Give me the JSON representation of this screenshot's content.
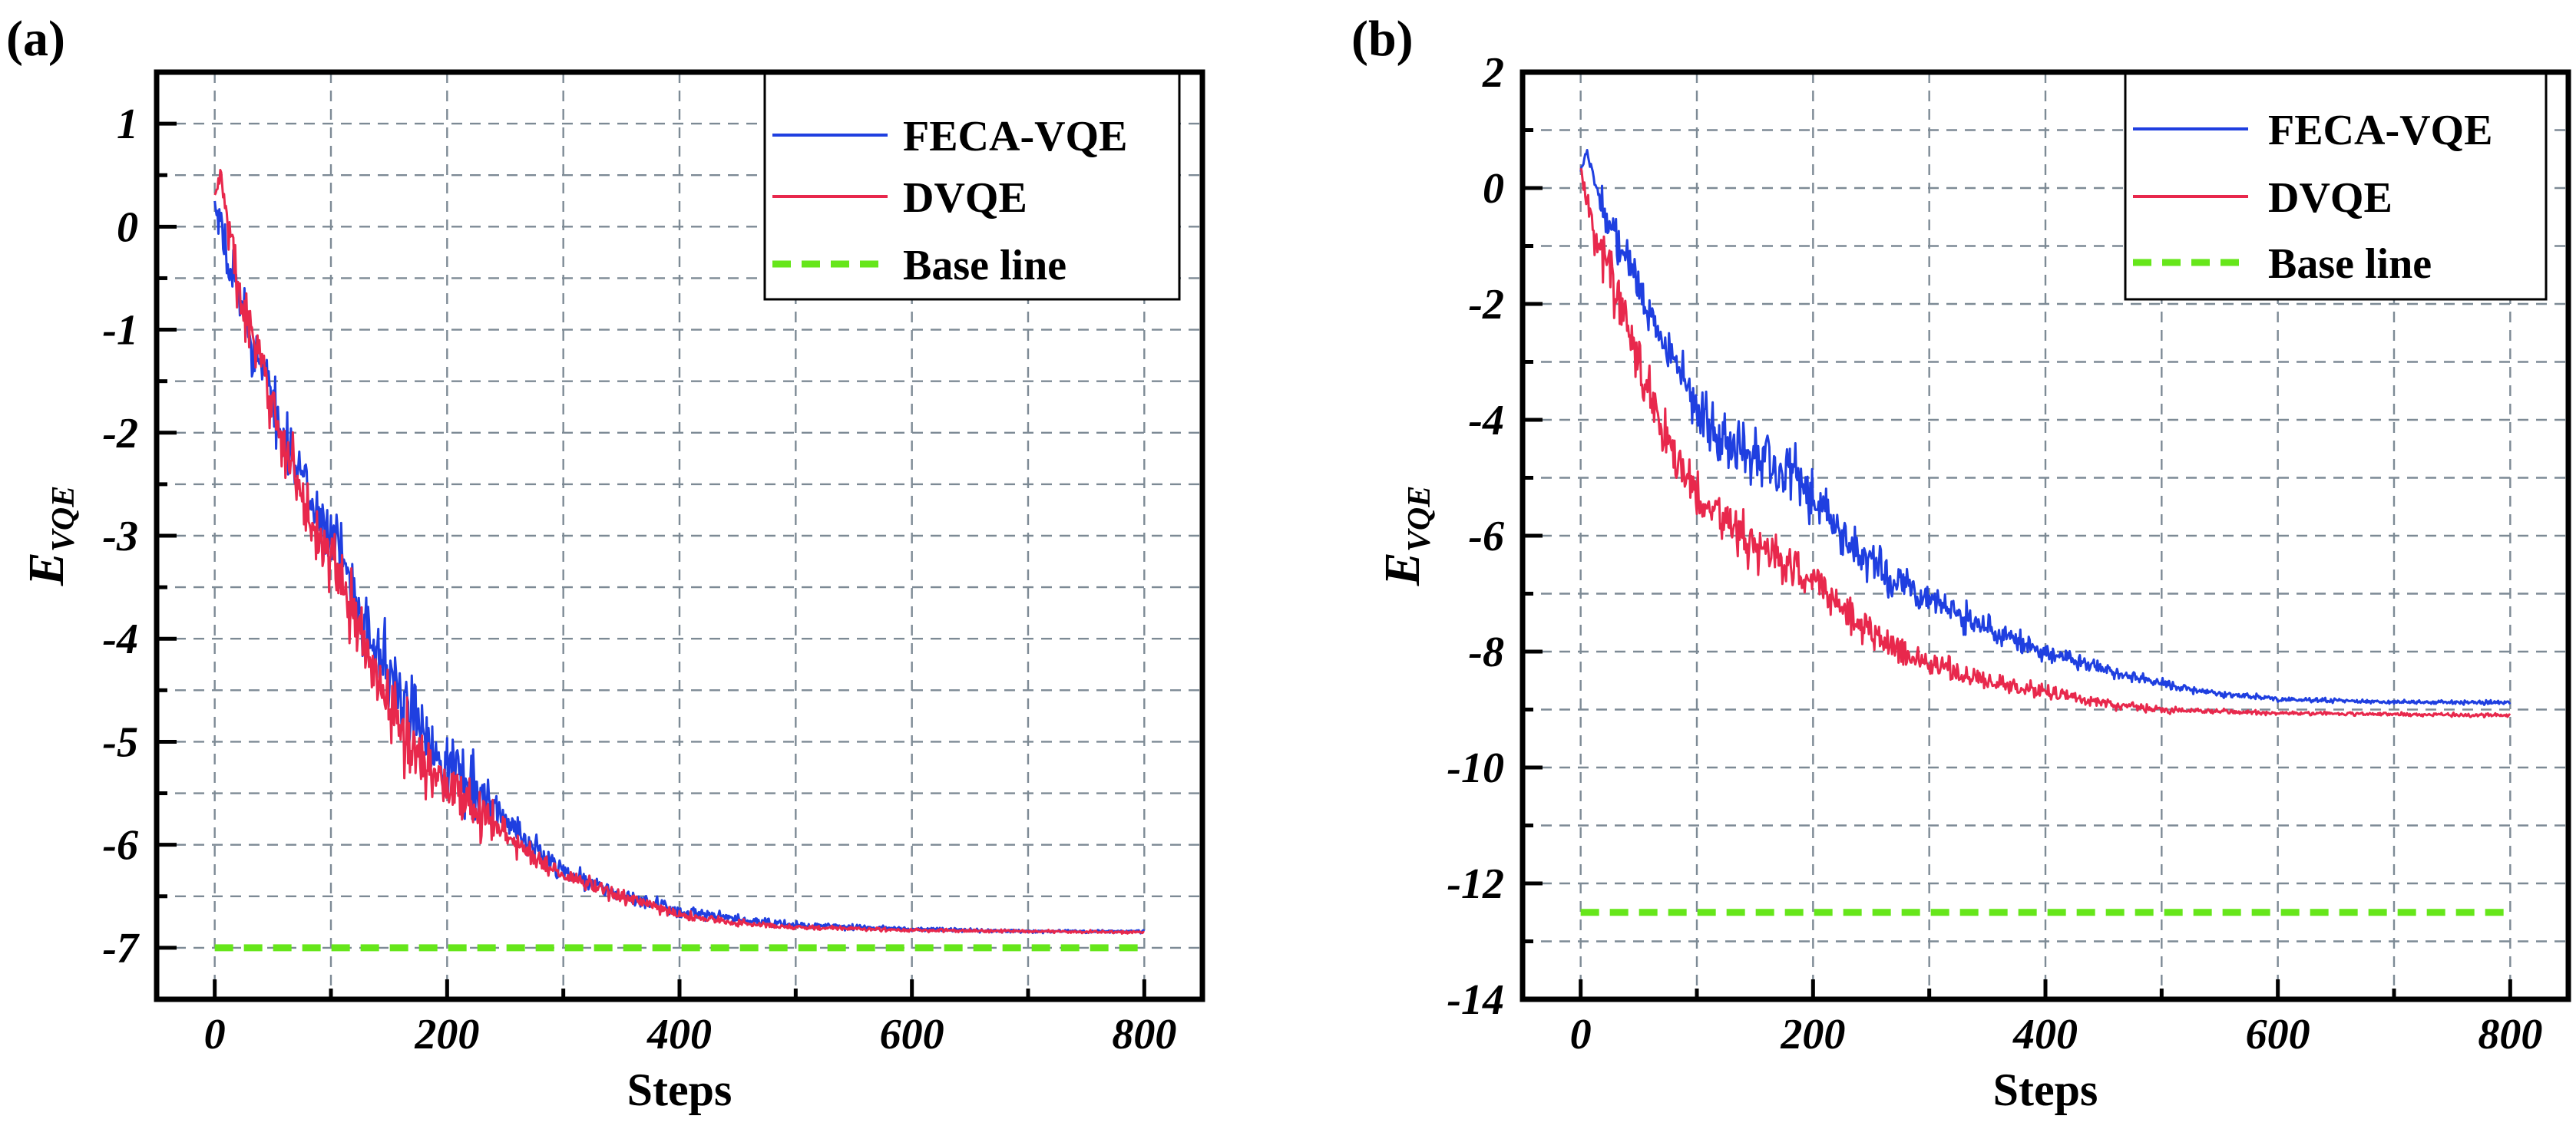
{
  "chart_data": [
    {
      "type": "line",
      "panel_label": "(a)",
      "xlabel": "Steps",
      "ylabel": "E",
      "ylabel_subscript": "VQE",
      "xlim": [
        -50,
        850
      ],
      "ylim": [
        -7.5,
        1.5
      ],
      "xticks": [
        0,
        200,
        400,
        600,
        800
      ],
      "xtick_labels": [
        "0",
        "200",
        "400",
        "600",
        "800"
      ],
      "yticks": [
        1,
        0,
        -1,
        -2,
        -3,
        -4,
        -5,
        -6,
        -7
      ],
      "ytick_labels": [
        "1",
        "0",
        "-1",
        "-2",
        "-3",
        "-4",
        "-5",
        "-6",
        "-7"
      ],
      "grid": true,
      "legend": {
        "placement": "top-right",
        "entries": [
          "FECA-VQE",
          "DVQE",
          "Base line"
        ]
      },
      "series": [
        {
          "name": "FECA-VQE",
          "color": "#1f3fe0",
          "style": "solid",
          "x": [
            0,
            10,
            25,
            40,
            60,
            80,
            100,
            120,
            140,
            160,
            180,
            200,
            230,
            260,
            300,
            350,
            400,
            450,
            500,
            600,
            700,
            800
          ],
          "values": [
            0.2,
            -0.3,
            -0.8,
            -1.4,
            -2.0,
            -2.6,
            -3.0,
            -3.5,
            -4.1,
            -4.6,
            -4.9,
            -5.2,
            -5.5,
            -5.9,
            -6.25,
            -6.5,
            -6.65,
            -6.73,
            -6.78,
            -6.82,
            -6.84,
            -6.84
          ],
          "noise": [
            0.05,
            0.3,
            0.3,
            0.25,
            0.25,
            0.25,
            0.25,
            0.3,
            0.35,
            0.35,
            0.3,
            0.3,
            0.25,
            0.15,
            0.1,
            0.07,
            0.06,
            0.04,
            0.03,
            0.02,
            0.015,
            0.015
          ]
        },
        {
          "name": "DVQE",
          "color": "#e8284c",
          "style": "solid",
          "x": [
            0,
            5,
            20,
            40,
            60,
            80,
            100,
            120,
            140,
            160,
            180,
            200,
            230,
            260,
            300,
            350,
            400,
            450,
            500,
            600,
            700,
            800
          ],
          "values": [
            0.3,
            0.5,
            -0.6,
            -1.4,
            -2.1,
            -2.8,
            -3.2,
            -3.8,
            -4.4,
            -4.9,
            -5.2,
            -5.4,
            -5.7,
            -6.0,
            -6.3,
            -6.5,
            -6.68,
            -6.76,
            -6.8,
            -6.83,
            -6.84,
            -6.85
          ],
          "noise": [
            0.05,
            0.1,
            0.3,
            0.25,
            0.25,
            0.25,
            0.25,
            0.3,
            0.3,
            0.3,
            0.3,
            0.25,
            0.2,
            0.12,
            0.08,
            0.06,
            0.04,
            0.03,
            0.02,
            0.015,
            0.012,
            0.012
          ]
        },
        {
          "name": "Base line",
          "color": "#66e61a",
          "style": "dashed",
          "x": [
            0,
            800
          ],
          "values": [
            -7.0,
            -7.0
          ],
          "noise": [
            0,
            0
          ]
        }
      ]
    },
    {
      "type": "line",
      "panel_label": "(b)",
      "xlabel": "Steps",
      "ylabel": "E",
      "ylabel_subscript": "VQE",
      "xlim": [
        -50,
        850
      ],
      "ylim": [
        -14,
        2
      ],
      "xticks": [
        0,
        200,
        400,
        600,
        800
      ],
      "xtick_labels": [
        "0",
        "200",
        "400",
        "600",
        "800"
      ],
      "yticks": [
        2,
        0,
        -2,
        -4,
        -6,
        -8,
        -10,
        -12,
        -14
      ],
      "ytick_labels": [
        "2",
        "0",
        "-2",
        "-4",
        "-6",
        "-8",
        "-10",
        "-12",
        "-14"
      ],
      "grid": true,
      "legend": {
        "placement": "top-right",
        "entries": [
          "FECA-VQE",
          "DVQE",
          "Base line"
        ]
      },
      "series": [
        {
          "name": "FECA-VQE",
          "color": "#1f3fe0",
          "style": "solid",
          "x": [
            0,
            5,
            20,
            40,
            60,
            80,
            100,
            120,
            150,
            180,
            200,
            230,
            260,
            300,
            350,
            400,
            450,
            500,
            550,
            600,
            700,
            800
          ],
          "values": [
            0.3,
            0.6,
            -0.4,
            -1.2,
            -2.2,
            -3.0,
            -3.8,
            -4.3,
            -4.6,
            -4.8,
            -5.4,
            -6.1,
            -6.6,
            -7.1,
            -7.6,
            -8.0,
            -8.3,
            -8.55,
            -8.72,
            -8.82,
            -8.87,
            -8.88
          ],
          "noise": [
            0.05,
            0.1,
            0.35,
            0.35,
            0.35,
            0.35,
            0.35,
            0.45,
            0.5,
            0.5,
            0.45,
            0.35,
            0.3,
            0.25,
            0.2,
            0.15,
            0.1,
            0.07,
            0.05,
            0.04,
            0.03,
            0.03
          ]
        },
        {
          "name": "DVQE",
          "color": "#e8284c",
          "style": "solid",
          "x": [
            0,
            5,
            20,
            40,
            60,
            80,
            100,
            130,
            160,
            200,
            230,
            260,
            300,
            350,
            400,
            450,
            500,
            550,
            600,
            700,
            800
          ],
          "values": [
            0.4,
            -0.3,
            -1.2,
            -2.3,
            -3.6,
            -4.6,
            -5.2,
            -5.9,
            -6.3,
            -6.8,
            -7.3,
            -7.8,
            -8.2,
            -8.5,
            -8.7,
            -8.9,
            -9.0,
            -9.03,
            -9.06,
            -9.08,
            -9.1
          ],
          "noise": [
            0.05,
            0.4,
            0.45,
            0.45,
            0.45,
            0.4,
            0.4,
            0.4,
            0.35,
            0.3,
            0.3,
            0.25,
            0.2,
            0.15,
            0.12,
            0.08,
            0.05,
            0.04,
            0.03,
            0.03,
            0.03
          ]
        },
        {
          "name": "Base line",
          "color": "#66e61a",
          "style": "dashed",
          "x": [
            0,
            800
          ],
          "values": [
            -12.5,
            -12.5
          ],
          "noise": [
            0,
            0
          ]
        }
      ]
    }
  ]
}
